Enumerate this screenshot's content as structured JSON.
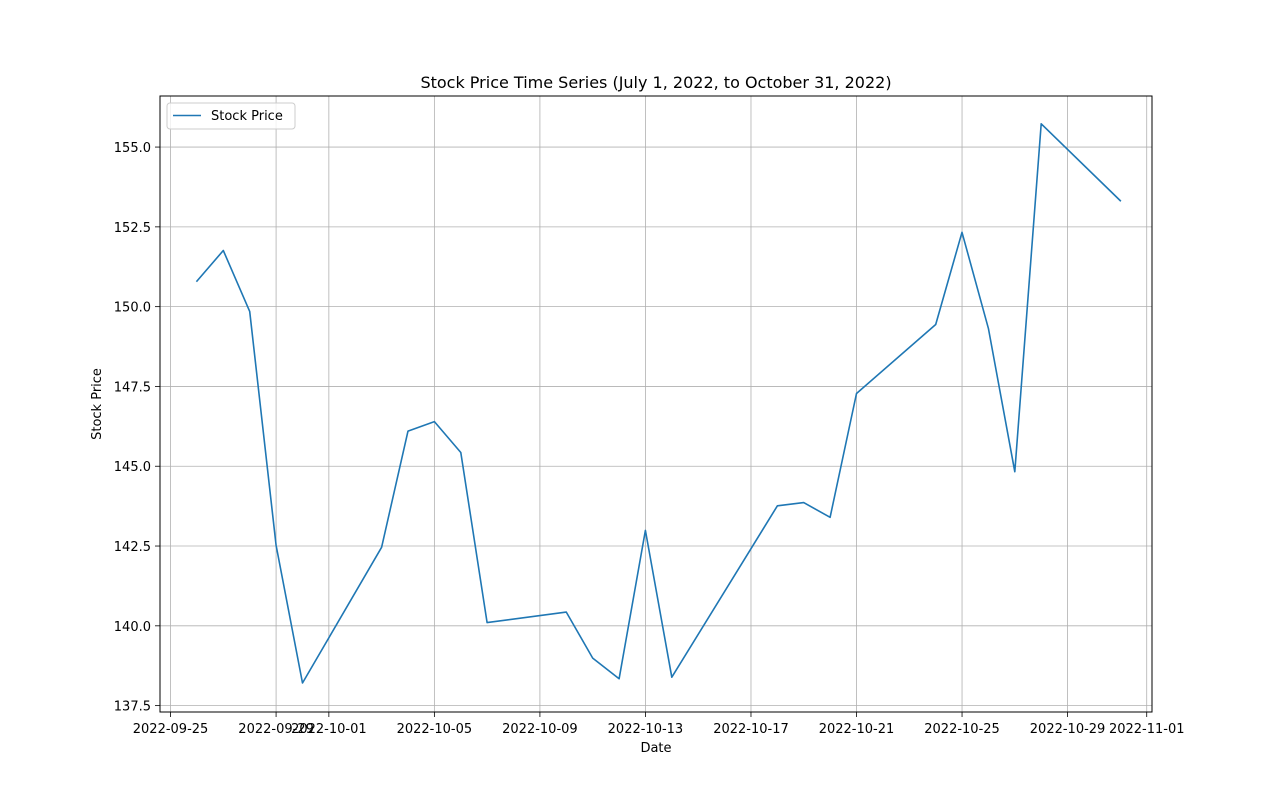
{
  "chart_data": {
    "type": "line",
    "title": "Stock Price Time Series (July 1, 2022, to October 31, 2022)",
    "xlabel": "Date",
    "ylabel": "Stock Price",
    "grid": true,
    "legend_position": "top-left",
    "xlim": [
      "2022-09-25",
      "2022-11-01"
    ],
    "ylim": [
      137.3,
      156.6
    ],
    "x_ticks": [
      "2022-09-25",
      "2022-09-29",
      "2022-10-01",
      "2022-10-05",
      "2022-10-09",
      "2022-10-13",
      "2022-10-17",
      "2022-10-21",
      "2022-10-25",
      "2022-10-29",
      "2022-11-01"
    ],
    "y_ticks": [
      "137.5",
      "140.0",
      "142.5",
      "145.0",
      "147.5",
      "150.0",
      "152.5",
      "155.0"
    ],
    "series": [
      {
        "name": "Stock Price",
        "color": "#1f77b4",
        "x": [
          "2022-09-26",
          "2022-09-27",
          "2022-09-28",
          "2022-09-29",
          "2022-09-30",
          "2022-10-03",
          "2022-10-04",
          "2022-10-05",
          "2022-10-06",
          "2022-10-07",
          "2022-10-10",
          "2022-10-11",
          "2022-10-12",
          "2022-10-13",
          "2022-10-14",
          "2022-10-18",
          "2022-10-19",
          "2022-10-20",
          "2022-10-21",
          "2022-10-24",
          "2022-10-25",
          "2022-10-26",
          "2022-10-27",
          "2022-10-28",
          "2022-10-31"
        ],
        "y": [
          150.8,
          151.76,
          149.85,
          142.52,
          138.21,
          142.46,
          146.1,
          146.4,
          145.43,
          140.1,
          140.43,
          138.99,
          138.34,
          142.99,
          138.39,
          143.76,
          143.86,
          143.4,
          147.28,
          149.44,
          152.33,
          149.32,
          144.83,
          155.73,
          153.32
        ]
      }
    ]
  }
}
